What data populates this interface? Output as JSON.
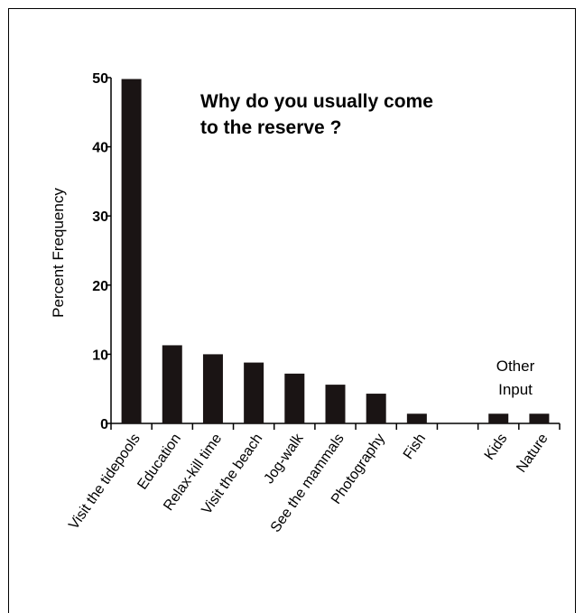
{
  "chart_data": {
    "type": "bar",
    "title_lines": [
      "Why do you usually come",
      "to the reserve ?"
    ],
    "ylabel": "Percent Frequency",
    "xlabel": "",
    "ylim": [
      0,
      50
    ],
    "yticks": [
      0,
      10,
      20,
      30,
      40,
      50
    ],
    "categories": [
      "Visit the tidepools",
      "Education",
      "Relax-kill time",
      "Visit the beach",
      "Jog-walk",
      "See the mammals",
      "Photography",
      "Fish",
      "",
      "Kids",
      "Nature"
    ],
    "values": [
      49.8,
      11.3,
      10.0,
      8.8,
      7.2,
      5.6,
      4.3,
      1.4,
      0,
      1.4,
      1.4
    ],
    "annotation_lines": [
      "Other",
      "Input"
    ],
    "bar_color": "#1a1414",
    "grid": false
  }
}
